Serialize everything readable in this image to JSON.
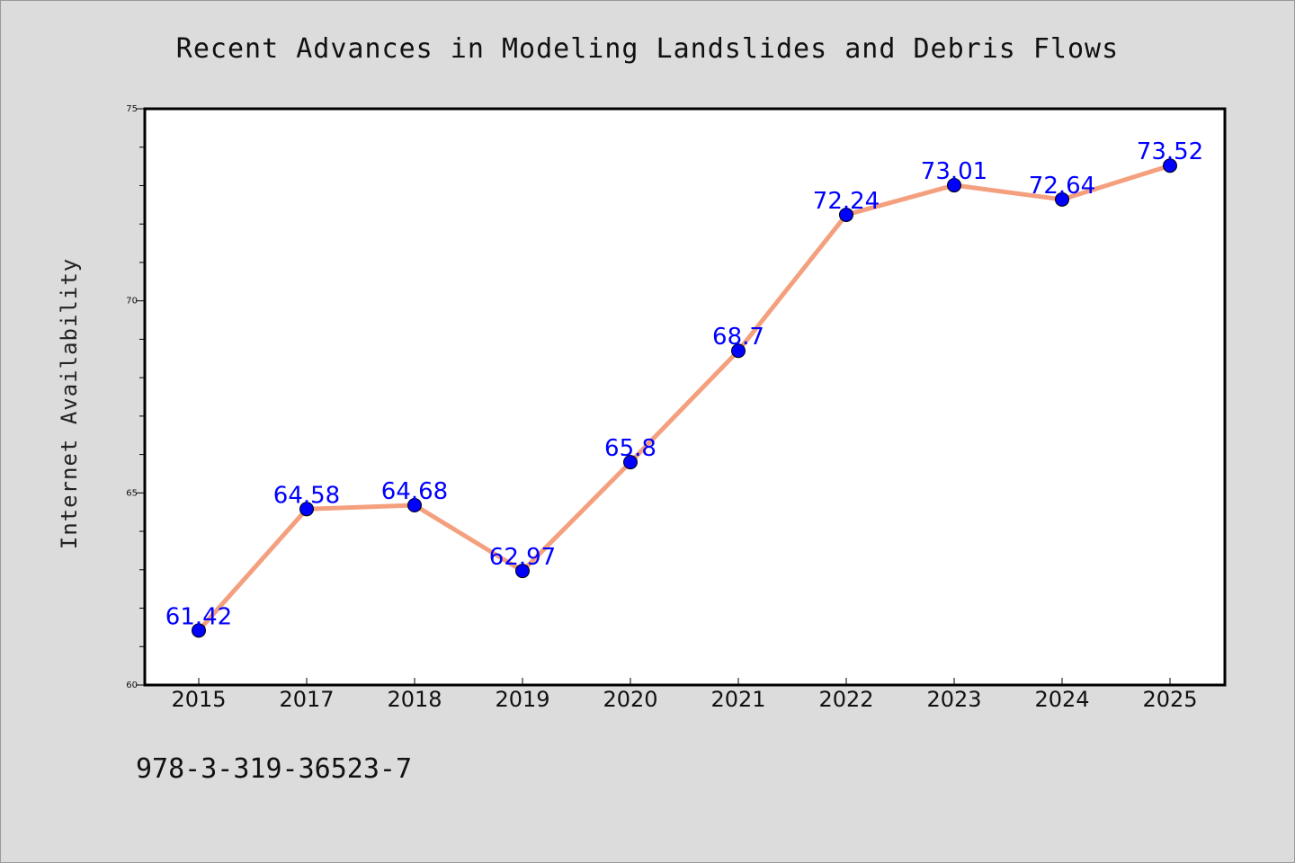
{
  "chart_data": {
    "type": "line",
    "title": "Recent Advances in Modeling Landslides and Debris Flows",
    "xlabel": "",
    "ylabel": "Internet Availability",
    "categories": [
      "2015",
      "2017",
      "2018",
      "2019",
      "2020",
      "2021",
      "2022",
      "2023",
      "2024",
      "2025"
    ],
    "series": [
      {
        "values": [
          61.42,
          64.58,
          64.68,
          62.97,
          65.8,
          68.7,
          72.24,
          73.01,
          72.64,
          73.52
        ],
        "labels": [
          "61.42",
          "64.58",
          "64.68",
          "62.97",
          "65.8",
          "68.7",
          "72.24",
          "73.01",
          "72.64",
          "73.52"
        ],
        "line_color": "#f4a07e",
        "marker_color": "#0000ff"
      }
    ],
    "ylim": [
      60,
      75
    ],
    "yticks": [
      60,
      65,
      70,
      75
    ],
    "ytick_labels": [
      "60",
      "65",
      "70",
      "75"
    ],
    "grid": false,
    "legend": "none"
  },
  "footer": {
    "isbn": "978-3-319-36523-7"
  }
}
